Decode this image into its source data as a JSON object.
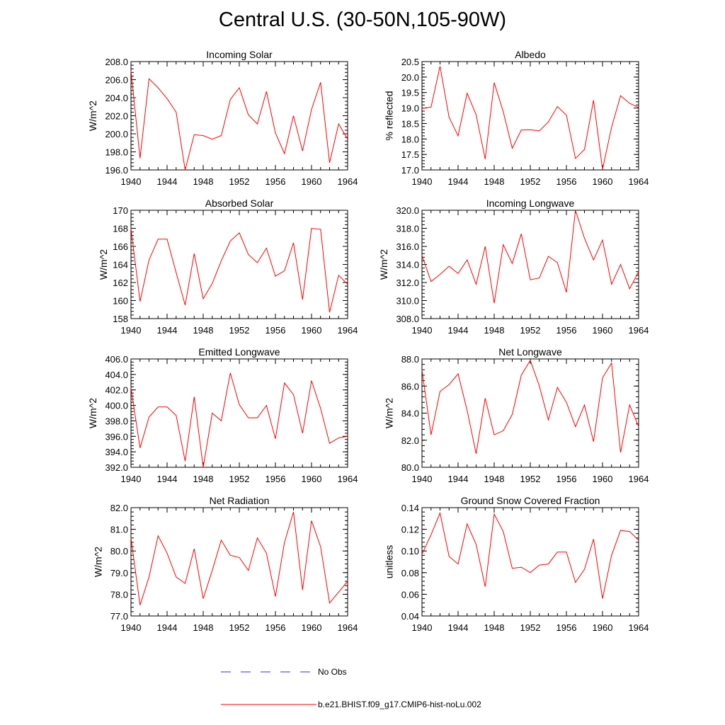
{
  "title": "Central U.S. (30-50N,105-90W)",
  "legend": [
    {
      "label": "No Obs",
      "color": "#3333cc",
      "style": "dashed"
    },
    {
      "label": "b.e21.BHIST.f09_g17.CMIP6-hist-noLu.002",
      "color": "#ff0000",
      "style": "solid"
    }
  ],
  "chart_data": [
    {
      "type": "line",
      "title": "Incoming Solar",
      "ylabel": "W/m^2",
      "xlim": [
        1940,
        1964
      ],
      "ylim": [
        196,
        208
      ],
      "xticks": [
        "1940",
        "1944",
        "1948",
        "1952",
        "1956",
        "1960",
        "1964"
      ],
      "yticks": [
        "196.0",
        "198.0",
        "200.0",
        "202.0",
        "204.0",
        "206.0",
        "208.0"
      ],
      "series": [
        {
          "name": "b.e21.BHIST.f09_g17.CMIP6-hist-noLu.002",
          "x": [
            1940,
            1941,
            1942,
            1943,
            1944,
            1945,
            1946,
            1947,
            1948,
            1949,
            1950,
            1951,
            1952,
            1953,
            1954,
            1955,
            1956,
            1957,
            1958,
            1959,
            1960,
            1961,
            1962,
            1963,
            1964
          ],
          "values": [
            207.0,
            197.3,
            206.1,
            205.1,
            203.9,
            202.4,
            196.0,
            199.9,
            199.8,
            199.4,
            199.8,
            203.8,
            205.1,
            202.1,
            201.1,
            204.7,
            200.1,
            197.8,
            202.0,
            198.1,
            202.7,
            205.7,
            196.8,
            201.1,
            199.4
          ]
        }
      ]
    },
    {
      "type": "line",
      "title": "Albedo",
      "ylabel": "% reflected",
      "xlim": [
        1940,
        1964
      ],
      "ylim": [
        17.0,
        20.5
      ],
      "xticks": [
        "1940",
        "1944",
        "1948",
        "1952",
        "1956",
        "1960",
        "1964"
      ],
      "yticks": [
        "17.0",
        "17.5",
        "18.0",
        "18.5",
        "19.0",
        "19.5",
        "20.0",
        "20.5"
      ],
      "series": [
        {
          "name": "b.e21.BHIST.f09_g17.CMIP6-hist-noLu.002",
          "x": [
            1940,
            1941,
            1942,
            1943,
            1944,
            1945,
            1946,
            1947,
            1948,
            1949,
            1950,
            1951,
            1952,
            1953,
            1954,
            1955,
            1956,
            1957,
            1958,
            1959,
            1960,
            1961,
            1962,
            1963,
            1964
          ],
          "values": [
            18.99,
            19.03,
            20.35,
            18.7,
            18.1,
            19.48,
            18.78,
            17.35,
            19.82,
            18.88,
            17.7,
            18.29,
            18.3,
            18.26,
            18.55,
            19.05,
            18.77,
            17.37,
            17.66,
            19.25,
            17.02,
            18.38,
            19.4,
            19.15,
            19.02
          ]
        }
      ]
    },
    {
      "type": "line",
      "title": "Absorbed Solar",
      "ylabel": "W/m^2",
      "xlim": [
        1940,
        1964
      ],
      "ylim": [
        158,
        170
      ],
      "xticks": [
        "1940",
        "1944",
        "1948",
        "1952",
        "1956",
        "1960",
        "1964"
      ],
      "yticks": [
        "158",
        "160",
        "162",
        "164",
        "166",
        "168",
        "170"
      ],
      "series": [
        {
          "name": "b.e21.BHIST.f09_g17.CMIP6-hist-noLu.002",
          "x": [
            1940,
            1941,
            1942,
            1943,
            1944,
            1945,
            1946,
            1947,
            1948,
            1949,
            1950,
            1951,
            1952,
            1953,
            1954,
            1955,
            1956,
            1957,
            1958,
            1959,
            1960,
            1961,
            1962,
            1963,
            1964
          ],
          "values": [
            168.0,
            159.9,
            164.5,
            166.8,
            166.8,
            163.1,
            159.5,
            165.2,
            160.2,
            161.9,
            164.4,
            166.6,
            167.5,
            165.1,
            164.2,
            165.8,
            162.7,
            163.3,
            166.4,
            160.1,
            168.0,
            167.9,
            158.7,
            162.8,
            161.8
          ]
        }
      ]
    },
    {
      "type": "line",
      "title": "Incoming Longwave",
      "ylabel": "W/m^2",
      "xlim": [
        1940,
        1964
      ],
      "ylim": [
        308,
        320
      ],
      "xticks": [
        "1940",
        "1944",
        "1948",
        "1952",
        "1956",
        "1960",
        "1964"
      ],
      "yticks": [
        "308.0",
        "310.0",
        "312.0",
        "314.0",
        "316.0",
        "318.0",
        "320.0"
      ],
      "series": [
        {
          "name": "b.e21.BHIST.f09_g17.CMIP6-hist-noLu.002",
          "x": [
            1940,
            1941,
            1942,
            1943,
            1944,
            1945,
            1946,
            1947,
            1948,
            1949,
            1950,
            1951,
            1952,
            1953,
            1954,
            1955,
            1956,
            1957,
            1958,
            1959,
            1960,
            1961,
            1962,
            1963,
            1964
          ],
          "values": [
            315.0,
            312.1,
            312.9,
            313.8,
            313.0,
            314.5,
            311.8,
            316.0,
            309.7,
            316.2,
            314.1,
            317.4,
            312.3,
            312.5,
            314.9,
            314.2,
            310.9,
            320.0,
            316.9,
            314.5,
            316.7,
            311.8,
            314.0,
            311.3,
            313.2
          ]
        }
      ]
    },
    {
      "type": "line",
      "title": "Emitted Longwave",
      "ylabel": "W/m^2",
      "xlim": [
        1940,
        1964
      ],
      "ylim": [
        392,
        406
      ],
      "xticks": [
        "1940",
        "1944",
        "1948",
        "1952",
        "1956",
        "1960",
        "1964"
      ],
      "yticks": [
        "392.0",
        "394.0",
        "396.0",
        "398.0",
        "400.0",
        "402.0",
        "404.0",
        "406.0"
      ],
      "series": [
        {
          "name": "b.e21.BHIST.f09_g17.CMIP6-hist-noLu.002",
          "x": [
            1940,
            1941,
            1942,
            1943,
            1944,
            1945,
            1946,
            1947,
            1948,
            1949,
            1950,
            1951,
            1952,
            1953,
            1954,
            1955,
            1956,
            1957,
            1958,
            1959,
            1960,
            1961,
            1962,
            1963,
            1964
          ],
          "values": [
            402.3,
            394.5,
            398.5,
            399.8,
            399.8,
            398.7,
            392.8,
            401.1,
            392.0,
            399.0,
            398.0,
            404.2,
            400.1,
            398.4,
            398.4,
            400.0,
            395.7,
            402.9,
            401.4,
            396.4,
            403.2,
            399.6,
            395.1,
            395.8,
            396.0
          ]
        }
      ]
    },
    {
      "type": "line",
      "title": "Net Longwave",
      "ylabel": "W/m^2",
      "xlim": [
        1940,
        1964
      ],
      "ylim": [
        80,
        88
      ],
      "xticks": [
        "1940",
        "1944",
        "1948",
        "1952",
        "1956",
        "1960",
        "1964"
      ],
      "yticks": [
        "80.0",
        "82.0",
        "84.0",
        "86.0",
        "88.0"
      ],
      "series": [
        {
          "name": "b.e21.BHIST.f09_g17.CMIP6-hist-noLu.002",
          "x": [
            1940,
            1941,
            1942,
            1943,
            1944,
            1945,
            1946,
            1947,
            1948,
            1949,
            1950,
            1951,
            1952,
            1953,
            1954,
            1955,
            1956,
            1957,
            1958,
            1959,
            1960,
            1961,
            1962,
            1963,
            1964
          ],
          "values": [
            87.2,
            82.4,
            85.6,
            86.1,
            86.9,
            84.2,
            81.0,
            85.1,
            82.4,
            82.7,
            83.9,
            86.8,
            87.9,
            86.0,
            83.5,
            85.9,
            84.8,
            83.0,
            84.6,
            81.9,
            86.6,
            87.7,
            81.1,
            84.6,
            83.0
          ]
        }
      ]
    },
    {
      "type": "line",
      "title": "Net Radiation",
      "ylabel": "W/m^2",
      "xlim": [
        1940,
        1964
      ],
      "ylim": [
        77,
        82
      ],
      "xticks": [
        "1940",
        "1944",
        "1948",
        "1952",
        "1956",
        "1960",
        "1964"
      ],
      "yticks": [
        "77.0",
        "78.0",
        "79.0",
        "80.0",
        "81.0",
        "82.0"
      ],
      "series": [
        {
          "name": "b.e21.BHIST.f09_g17.CMIP6-hist-noLu.002",
          "x": [
            1940,
            1941,
            1942,
            1943,
            1944,
            1945,
            1946,
            1947,
            1948,
            1949,
            1950,
            1951,
            1952,
            1953,
            1954,
            1955,
            1956,
            1957,
            1958,
            1959,
            1960,
            1961,
            1962,
            1963,
            1964
          ],
          "values": [
            80.6,
            77.5,
            78.8,
            80.7,
            79.9,
            78.8,
            78.5,
            80.1,
            77.8,
            79.1,
            80.5,
            79.8,
            79.7,
            79.1,
            80.6,
            79.9,
            77.9,
            80.4,
            81.8,
            78.2,
            81.4,
            80.2,
            77.6,
            78.1,
            78.6
          ]
        }
      ]
    },
    {
      "type": "line",
      "title": "Ground Snow Covered Fraction",
      "ylabel": "unitless",
      "xlim": [
        1940,
        1964
      ],
      "ylim": [
        0.04,
        0.14
      ],
      "xticks": [
        "1940",
        "1944",
        "1948",
        "1952",
        "1956",
        "1960",
        "1964"
      ],
      "yticks": [
        "0.04",
        "0.06",
        "0.08",
        "0.10",
        "0.12",
        "0.14"
      ],
      "series": [
        {
          "name": "b.e21.BHIST.f09_g17.CMIP6-hist-noLu.002",
          "x": [
            1940,
            1941,
            1942,
            1943,
            1944,
            1945,
            1946,
            1947,
            1948,
            1949,
            1950,
            1951,
            1952,
            1953,
            1954,
            1955,
            1956,
            1957,
            1958,
            1959,
            1960,
            1961,
            1962,
            1963,
            1964
          ],
          "values": [
            0.097,
            0.115,
            0.135,
            0.095,
            0.088,
            0.125,
            0.106,
            0.067,
            0.134,
            0.118,
            0.084,
            0.085,
            0.08,
            0.087,
            0.088,
            0.099,
            0.099,
            0.071,
            0.083,
            0.111,
            0.056,
            0.096,
            0.119,
            0.118,
            0.11
          ]
        }
      ]
    }
  ]
}
